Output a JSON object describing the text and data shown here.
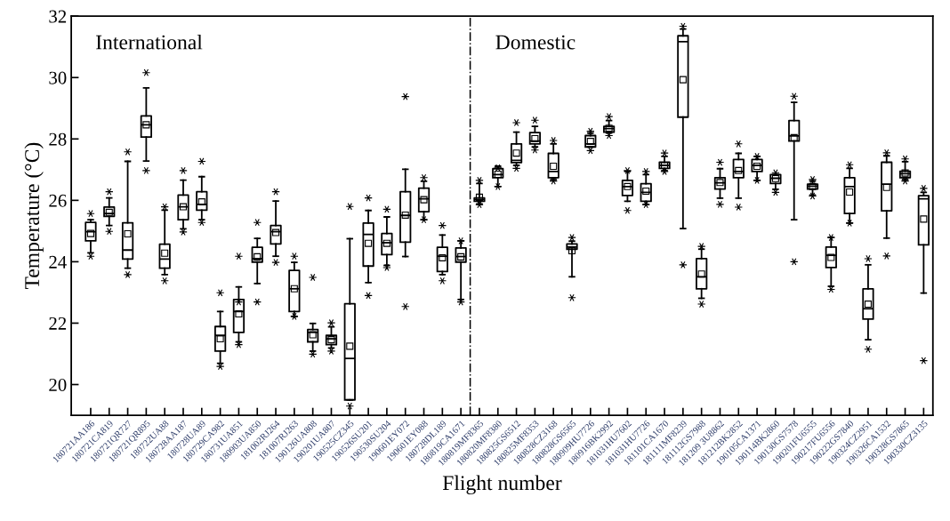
{
  "chart_data": {
    "type": "box",
    "xlabel": "Flight number",
    "ylabel": "Temperature (°C)",
    "categories": [
      "180721AA186",
      "180721CA819",
      "180721QR727",
      "180721QR895",
      "180722UA88",
      "180728AA187",
      "180728UA89",
      "180729CA982",
      "180731UA851",
      "180903UA850",
      "181002RJ264",
      "181007RJ263",
      "190126UA808",
      "190201UA807",
      "190525CZ345",
      "190526SU201",
      "190530SU204",
      "190601EY072",
      "190601EY088",
      "180728DL189",
      "180819CA1671",
      "180819MF8365",
      "180820MF8380",
      "180825GS6512",
      "180825MF8353",
      "180828CZ3168",
      "180828GS6565",
      "180909HU7726",
      "180916BK2992",
      "181031HU7602",
      "181031HU7726",
      "181101CA1670",
      "181111MF8239",
      "181112GS7988",
      "181209 3U8862",
      "181212BK2852",
      "190105CA1371",
      "190114BK2860",
      "190130GS7578",
      "190201FU6555",
      "190217FU6556",
      "190222GS7840",
      "190324CZ2951",
      "190326CA1532",
      "190328GS7865",
      "190330CZ3135"
    ],
    "boxes": [
      {
        "low": 24.29,
        "q1": 24.68,
        "median": 24.98,
        "q3": 25.28,
        "high": 25.37,
        "mean": 24.92,
        "outliers": [
          25.57,
          24.18
        ]
      },
      {
        "low": 25.18,
        "q1": 25.48,
        "median": 25.57,
        "q3": 25.78,
        "high": 26.08,
        "mean": 25.61,
        "outliers": [
          26.28,
          24.99
        ]
      },
      {
        "low": 23.79,
        "q1": 24.09,
        "median": 24.38,
        "q3": 25.27,
        "high": 27.27,
        "mean": 24.91,
        "outliers": [
          27.58,
          23.58
        ]
      },
      {
        "low": 27.28,
        "q1": 28.06,
        "median": 28.46,
        "q3": 28.75,
        "high": 29.66,
        "mean": 28.46,
        "outliers": [
          30.16,
          26.97
        ]
      },
      {
        "low": 23.58,
        "q1": 23.79,
        "median": 24.09,
        "q3": 24.57,
        "high": 25.68,
        "mean": 24.28,
        "outliers": [
          25.79,
          23.38
        ]
      },
      {
        "low": 25.07,
        "q1": 25.37,
        "median": 25.79,
        "q3": 26.17,
        "high": 26.66,
        "mean": 25.79,
        "outliers": [
          26.97,
          24.97
        ]
      },
      {
        "low": 25.37,
        "q1": 25.68,
        "median": 25.87,
        "q3": 26.28,
        "high": 26.77,
        "mean": 25.95,
        "outliers": [
          27.27,
          25.28
        ]
      },
      {
        "low": 20.69,
        "q1": 21.09,
        "median": 21.6,
        "q3": 21.89,
        "high": 22.38,
        "mean": 21.49,
        "outliers": [
          22.99,
          20.59
        ]
      },
      {
        "low": 21.39,
        "q1": 21.7,
        "median": 22.38,
        "q3": 22.77,
        "high": 23.18,
        "mean": 22.3,
        "outliers": [
          24.18,
          22.69,
          21.3
        ]
      },
      {
        "low": 23.29,
        "q1": 23.99,
        "median": 24.1,
        "q3": 24.47,
        "high": 24.76,
        "mean": 24.16,
        "outliers": [
          25.28,
          22.69
        ]
      },
      {
        "low": 24.18,
        "q1": 24.58,
        "median": 24.98,
        "q3": 25.18,
        "high": 25.98,
        "mean": 24.95,
        "outliers": [
          26.28,
          23.98
        ]
      },
      {
        "low": 22.22,
        "q1": 22.38,
        "median": 23.12,
        "q3": 23.72,
        "high": 23.98,
        "mean": 23.12,
        "outliers": [
          24.18,
          22.22
        ]
      },
      {
        "low": 21.09,
        "q1": 21.39,
        "median": 21.7,
        "q3": 21.79,
        "high": 21.99,
        "mean": 21.62,
        "outliers": [
          23.49,
          20.99
        ]
      },
      {
        "low": 21.19,
        "q1": 21.3,
        "median": 21.49,
        "q3": 21.6,
        "high": 21.88,
        "mean": 21.46,
        "outliers": [
          22.01,
          21.09
        ]
      },
      {
        "low": 19.5,
        "q1": 19.5,
        "median": 20.85,
        "q3": 22.63,
        "high": 24.75,
        "mean": 21.25,
        "outliers": [
          25.8,
          19.3
        ]
      },
      {
        "low": 23.32,
        "q1": 23.86,
        "median": 24.89,
        "q3": 25.26,
        "high": 25.67,
        "mean": 24.6,
        "outliers": [
          26.08,
          22.9
        ]
      },
      {
        "low": 23.88,
        "q1": 24.23,
        "median": 24.62,
        "q3": 24.92,
        "high": 25.46,
        "mean": 24.6,
        "outliers": [
          25.71,
          23.81
        ]
      },
      {
        "low": 24.17,
        "q1": 24.64,
        "median": 25.51,
        "q3": 26.28,
        "high": 27.01,
        "mean": 25.52,
        "outliers": [
          29.38,
          22.54
        ]
      },
      {
        "low": 25.37,
        "q1": 25.63,
        "median": 26.05,
        "q3": 26.4,
        "high": 26.62,
        "mean": 26.02,
        "outliers": [
          26.74,
          25.37
        ]
      },
      {
        "low": 23.58,
        "q1": 23.68,
        "median": 24.18,
        "q3": 24.47,
        "high": 24.87,
        "mean": 24.13,
        "outliers": [
          25.18,
          23.38
        ]
      },
      {
        "low": 22.77,
        "q1": 23.99,
        "median": 24.17,
        "q3": 24.45,
        "high": 24.68,
        "mean": 24.16,
        "outliers": [
          24.68,
          22.69
        ]
      },
      {
        "low": 25.88,
        "q1": 25.97,
        "median": 26.03,
        "q3": 26.08,
        "high": 26.55,
        "mean": 26.1,
        "outliers": [
          26.65,
          25.86
        ]
      },
      {
        "low": 26.45,
        "q1": 26.74,
        "median": 26.84,
        "q3": 27.03,
        "high": 27.11,
        "mean": 26.85,
        "outliers": [
          27.06,
          26.45
        ]
      },
      {
        "low": 27.14,
        "q1": 27.23,
        "median": 27.3,
        "q3": 27.84,
        "high": 28.22,
        "mean": 27.54,
        "outliers": [
          28.53,
          27.04
        ]
      },
      {
        "low": 27.74,
        "q1": 27.84,
        "median": 27.93,
        "q3": 28.21,
        "high": 28.41,
        "mean": 28.01,
        "outliers": [
          28.61,
          27.64
        ]
      },
      {
        "low": 26.68,
        "q1": 26.74,
        "median": 26.94,
        "q3": 27.53,
        "high": 27.84,
        "mean": 27.11,
        "outliers": [
          27.95,
          26.63
        ]
      },
      {
        "low": 23.51,
        "q1": 24.41,
        "median": 24.48,
        "q3": 24.58,
        "high": 24.67,
        "mean": 24.36,
        "outliers": [
          24.79,
          22.83
        ]
      },
      {
        "low": 27.74,
        "q1": 27.74,
        "median": 27.84,
        "q3": 28.11,
        "high": 28.19,
        "mean": 27.92,
        "outliers": [
          28.25,
          27.62
        ]
      },
      {
        "low": 28.19,
        "q1": 28.22,
        "median": 28.34,
        "q3": 28.41,
        "high": 28.6,
        "mean": 28.35,
        "outliers": [
          28.73,
          28.11
        ]
      },
      {
        "low": 25.97,
        "q1": 26.16,
        "median": 26.45,
        "q3": 26.65,
        "high": 26.94,
        "mean": 26.45,
        "outliers": [
          26.97,
          25.67
        ]
      },
      {
        "low": 25.87,
        "q1": 25.97,
        "median": 26.26,
        "q3": 26.54,
        "high": 26.84,
        "mean": 26.3,
        "outliers": [
          26.94,
          25.86
        ]
      },
      {
        "low": 26.97,
        "q1": 27.04,
        "median": 27.14,
        "q3": 27.24,
        "high": 27.43,
        "mean": 27.14,
        "outliers": [
          27.54,
          26.94
        ]
      },
      {
        "low": 25.08,
        "q1": 28.71,
        "median": 31.17,
        "q3": 31.36,
        "high": 31.58,
        "mean": 29.93,
        "outliers": [
          31.67,
          23.9
        ]
      },
      {
        "low": 22.81,
        "q1": 23.12,
        "median": 23.51,
        "q3": 24.1,
        "high": 24.41,
        "mean": 23.6,
        "outliers": [
          24.5,
          22.62
        ]
      },
      {
        "low": 26.07,
        "q1": 26.37,
        "median": 26.57,
        "q3": 26.74,
        "high": 27.03,
        "mean": 26.58,
        "outliers": [
          27.24,
          25.87
        ]
      },
      {
        "low": 26.07,
        "q1": 26.74,
        "median": 26.94,
        "q3": 27.33,
        "high": 27.53,
        "mean": 26.97,
        "outliers": [
          27.84,
          25.78
        ]
      },
      {
        "low": 26.65,
        "q1": 26.94,
        "median": 27.14,
        "q3": 27.33,
        "high": 27.43,
        "mean": 27.11,
        "outliers": [
          27.43,
          26.65
        ]
      },
      {
        "low": 26.36,
        "q1": 26.55,
        "median": 26.72,
        "q3": 26.84,
        "high": 26.84,
        "mean": 26.71,
        "outliers": [
          26.9,
          26.26
        ]
      },
      {
        "low": 25.37,
        "q1": 27.93,
        "median": 28.1,
        "q3": 28.6,
        "high": 29.19,
        "mean": 28.04,
        "outliers": [
          29.39,
          24.0
        ]
      },
      {
        "low": 26.17,
        "q1": 26.37,
        "median": 26.46,
        "q3": 26.53,
        "high": 26.63,
        "mean": 26.45,
        "outliers": [
          26.68,
          26.14
        ]
      },
      {
        "low": 23.2,
        "q1": 23.81,
        "median": 24.21,
        "q3": 24.48,
        "high": 24.79,
        "mean": 24.14,
        "outliers": [
          24.79,
          23.1
        ]
      },
      {
        "low": 25.26,
        "q1": 25.57,
        "median": 26.45,
        "q3": 26.74,
        "high": 27.04,
        "mean": 26.27,
        "outliers": [
          27.16,
          25.26
        ]
      },
      {
        "low": 21.46,
        "q1": 22.13,
        "median": 22.47,
        "q3": 23.12,
        "high": 23.9,
        "mean": 22.62,
        "outliers": [
          24.1,
          21.15
        ]
      },
      {
        "low": 24.77,
        "q1": 25.66,
        "median": 26.53,
        "q3": 27.24,
        "high": 27.45,
        "mean": 26.42,
        "outliers": [
          27.55,
          24.19
        ]
      },
      {
        "low": 26.68,
        "q1": 26.74,
        "median": 26.87,
        "q3": 26.95,
        "high": 27.26,
        "mean": 26.89,
        "outliers": [
          27.35,
          26.63
        ]
      },
      {
        "low": 22.98,
        "q1": 24.55,
        "median": 26.05,
        "q3": 26.15,
        "high": 26.26,
        "mean": 25.39,
        "outliers": [
          26.39,
          20.78
        ]
      }
    ],
    "ylim": [
      19,
      32
    ],
    "yticks": [
      20,
      22,
      24,
      26,
      28,
      30,
      32
    ],
    "annotations": [
      "International",
      "Domestic"
    ],
    "grid": false,
    "legend": false
  }
}
